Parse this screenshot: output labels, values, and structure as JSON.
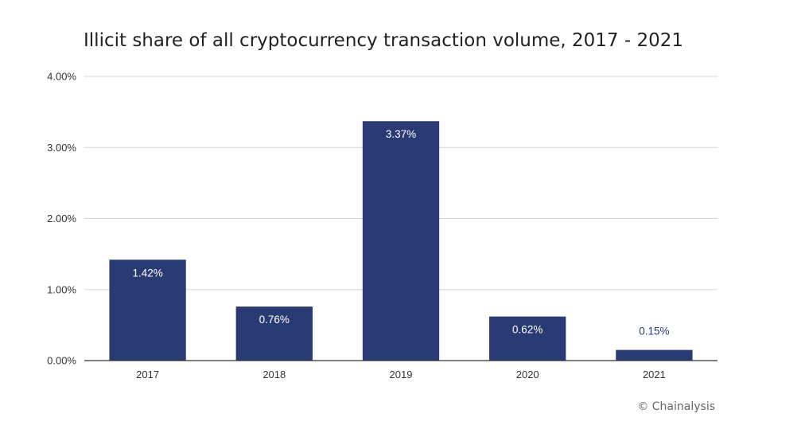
{
  "chart_data": {
    "type": "bar",
    "title": "Illicit share of all cryptocurrency transaction volume, 2017 - 2021",
    "categories": [
      "2017",
      "2018",
      "2019",
      "2020",
      "2021"
    ],
    "values": [
      1.42,
      0.76,
      3.37,
      0.62,
      0.15
    ],
    "data_labels": [
      "1.42%",
      "0.76%",
      "3.37%",
      "0.62%",
      "0.15%"
    ],
    "y_ticks": [
      0,
      1,
      2,
      3,
      4
    ],
    "y_tick_labels": [
      "0.00%",
      "1.00%",
      "2.00%",
      "3.00%",
      "4.00%"
    ],
    "ylim": [
      0,
      4
    ],
    "xlabel": "",
    "ylabel": "",
    "grid": true,
    "legend": "none",
    "colors": {
      "bar": "#2a3a72",
      "label_inside": "#ffffff",
      "label_outside": "#2a3a72",
      "grid": "#d4d4d4",
      "axis": "#333333"
    }
  },
  "source": "© Chainalysis"
}
